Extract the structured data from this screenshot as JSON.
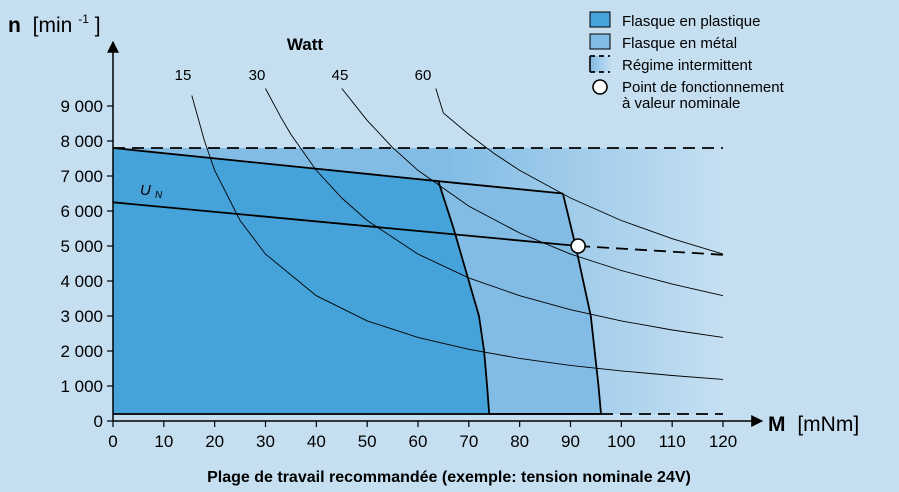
{
  "chart_data": {
    "type": "line",
    "title": "",
    "caption": "Plage de travail recommandée (exemple: tension nominale 24V)",
    "xlabel": {
      "symbol": "M",
      "unit": "[mNm]"
    },
    "ylabel": {
      "symbol": "n",
      "unit_open": "[min",
      "unit_sup": "-1",
      "unit_close": "]"
    },
    "xlim": [
      0,
      120
    ],
    "ylim": [
      0,
      10000
    ],
    "x_ticks": [
      0,
      10,
      20,
      30,
      40,
      50,
      60,
      70,
      80,
      90,
      100,
      110,
      120
    ],
    "x_tick_labels": [
      "0",
      "10",
      "20",
      "30",
      "40",
      "50",
      "60",
      "70",
      "80",
      "90",
      "100",
      "110",
      "120"
    ],
    "y_ticks": [
      0,
      1000,
      2000,
      3000,
      4000,
      5000,
      6000,
      7000,
      8000,
      9000
    ],
    "y_tick_labels": [
      "0",
      "1 000",
      "2 000",
      "3 000",
      "4 000",
      "5 000",
      "6 000",
      "7 000",
      "8 000",
      "9 000"
    ],
    "grid": false,
    "legend_position": "top-right",
    "legend": [
      {
        "label": "Flasque en plastique",
        "kind": "swatch",
        "color": "#45a3d9"
      },
      {
        "label": "Flasque en métal",
        "kind": "swatch",
        "color": "#82bce5"
      },
      {
        "label": "Régime intermittent",
        "kind": "gradient",
        "color": "#82bce5"
      },
      {
        "label": "Point de fonctionnement",
        "label_line2": "à valeur nominale",
        "kind": "circle",
        "color": "#ffffff"
      }
    ],
    "intermittent_region": {
      "x_range": [
        0,
        120
      ],
      "y_range": [
        200,
        7800
      ],
      "color_start": "#82bce5",
      "color_end": "#c5dff1"
    },
    "plastic_region": [
      [
        0,
        7800
      ],
      [
        64,
        6850
      ],
      [
        67,
        5500
      ],
      [
        70,
        4000
      ],
      [
        72,
        3000
      ],
      [
        73,
        2000
      ],
      [
        73.6,
        1000
      ],
      [
        74,
        200
      ],
      [
        0,
        200
      ]
    ],
    "metal_region": [
      [
        64,
        6850
      ],
      [
        88.5,
        6500
      ],
      [
        91,
        5000
      ],
      [
        94,
        3000
      ],
      [
        95.5,
        1000
      ],
      [
        96,
        200
      ],
      [
        74,
        200
      ],
      [
        73.6,
        1000
      ],
      [
        73,
        2000
      ],
      [
        72,
        3000
      ],
      [
        70,
        4000
      ],
      [
        67,
        5500
      ]
    ],
    "power_curves_label": "Watt",
    "power_curves": [
      {
        "name": "15",
        "points": [
          [
            15.5,
            9300
          ],
          [
            18,
            8000
          ],
          [
            20,
            7160
          ],
          [
            25,
            5730
          ],
          [
            30,
            4770
          ],
          [
            40,
            3580
          ],
          [
            50,
            2860
          ],
          [
            60,
            2390
          ],
          [
            70,
            2050
          ],
          [
            80,
            1790
          ],
          [
            90,
            1590
          ],
          [
            100,
            1430
          ],
          [
            110,
            1300
          ],
          [
            120,
            1190
          ]
        ]
      },
      {
        "name": "30",
        "points": [
          [
            30,
            9500
          ],
          [
            33,
            8680
          ],
          [
            35,
            8190
          ],
          [
            40,
            7160
          ],
          [
            45,
            6370
          ],
          [
            50,
            5730
          ],
          [
            60,
            4770
          ],
          [
            70,
            4090
          ],
          [
            80,
            3580
          ],
          [
            90,
            3180
          ],
          [
            100,
            2860
          ],
          [
            110,
            2600
          ],
          [
            120,
            2390
          ]
        ]
      },
      {
        "name": "45",
        "points": [
          [
            45,
            9500
          ],
          [
            50,
            8590
          ],
          [
            55,
            7810
          ],
          [
            60,
            7160
          ],
          [
            70,
            6140
          ],
          [
            80,
            5370
          ],
          [
            90,
            4770
          ],
          [
            100,
            4300
          ],
          [
            110,
            3910
          ],
          [
            120,
            3580
          ]
        ]
      },
      {
        "name": "60",
        "points": [
          [
            63.5,
            9500
          ],
          [
            65,
            8800
          ],
          [
            70,
            8190
          ],
          [
            75,
            7640
          ],
          [
            80,
            7160
          ],
          [
            90,
            6370
          ],
          [
            100,
            5730
          ],
          [
            110,
            5210
          ],
          [
            120,
            4770
          ]
        ]
      }
    ],
    "dashed_limits": [
      {
        "name": "speed-limit",
        "points": [
          [
            0,
            7800
          ],
          [
            120,
            7800
          ]
        ]
      },
      {
        "name": "low-speed-limit",
        "points": [
          [
            96,
            200
          ],
          [
            120,
            200
          ]
        ]
      }
    ],
    "nominal_voltage_line": {
      "label": "UN",
      "label_main": "U",
      "label_sub": "N",
      "solid": [
        [
          0,
          6250
        ],
        [
          91.5,
          5000
        ]
      ],
      "dashed": [
        [
          91.5,
          5000
        ],
        [
          120,
          4750
        ]
      ]
    },
    "operating_point": {
      "x": 91.5,
      "y": 5000
    }
  }
}
